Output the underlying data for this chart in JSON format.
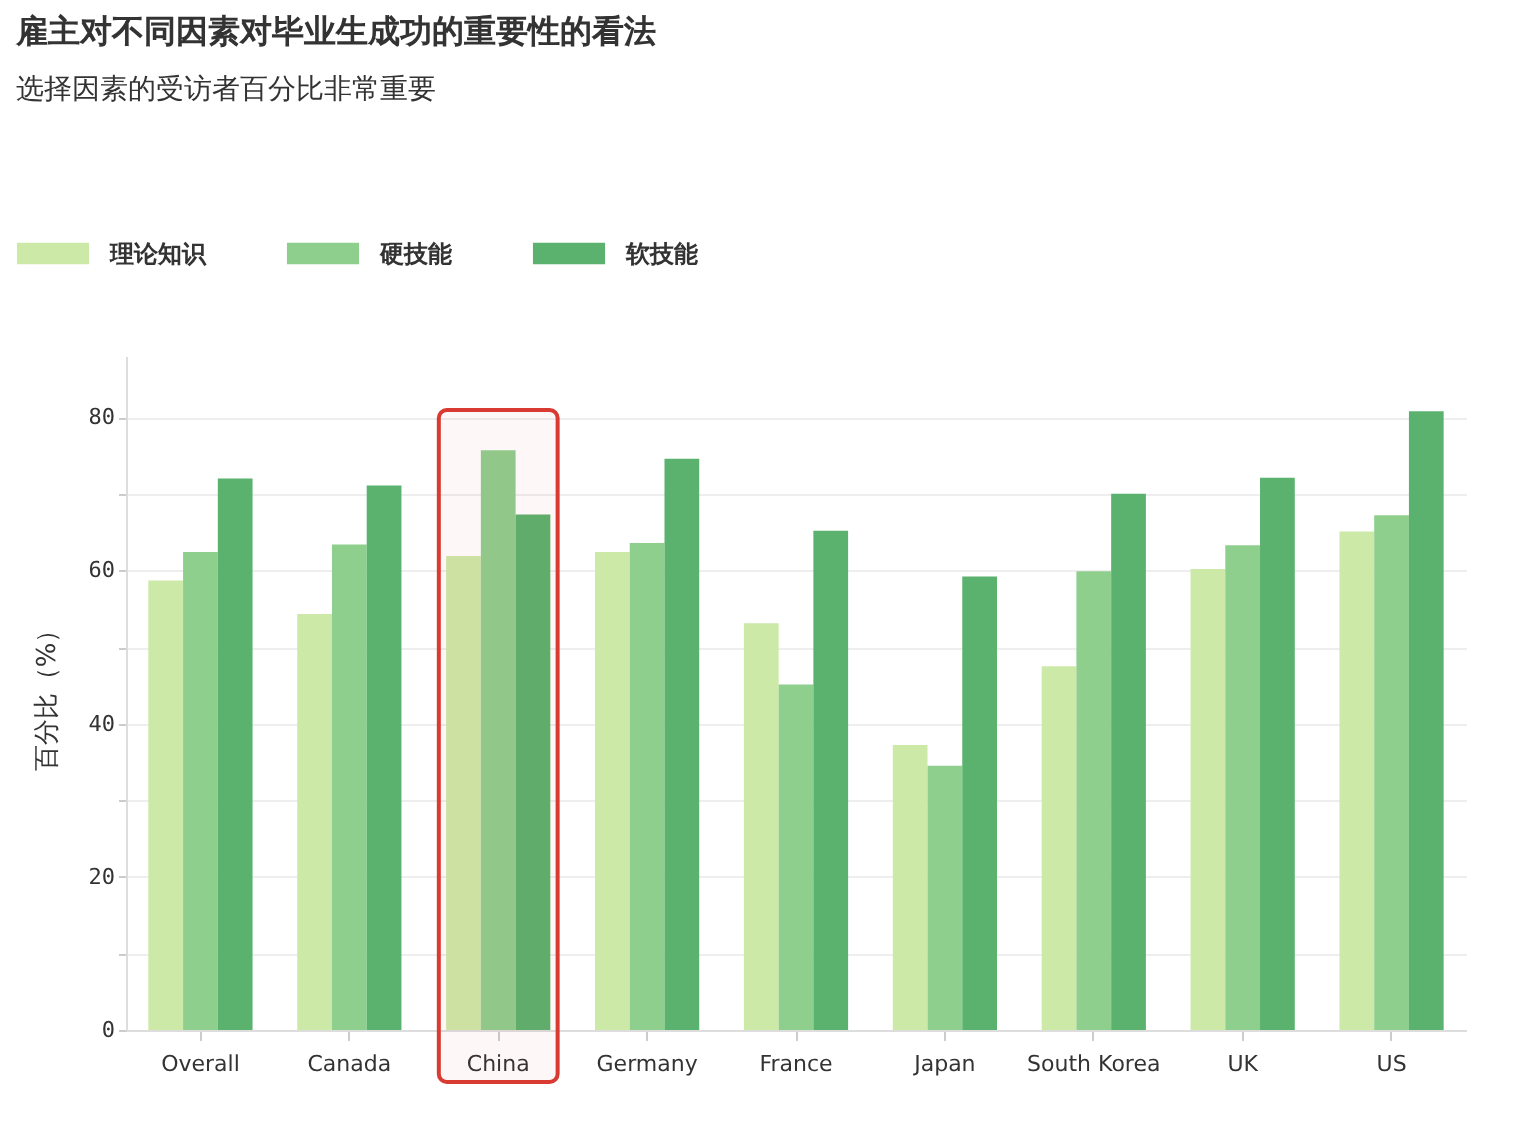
{
  "chart_data": {
    "type": "bar",
    "title": "雇主对不同因素对毕业生成功的重要性的看法",
    "subtitle": "选择因素的受访者百分比非常重要",
    "ylabel": "百分比（%）",
    "categories": [
      "Overall",
      "Canada",
      "China",
      "Germany",
      "France",
      "Japan",
      "South Korea",
      "UK",
      "US"
    ],
    "series": [
      {
        "name": "理论知识",
        "color": "#cde9a8",
        "values": [
          58.7,
          54.3,
          61.9,
          62.4,
          53.1,
          37.2,
          47.5,
          60.2,
          65.1
        ]
      },
      {
        "name": "硬技能",
        "color": "#8ecf8d",
        "values": [
          62.4,
          63.4,
          75.7,
          63.6,
          45.1,
          34.5,
          59.9,
          63.3,
          67.2
        ]
      },
      {
        "name": "软技能",
        "color": "#5bb26e",
        "values": [
          72.0,
          71.1,
          67.3,
          74.6,
          65.2,
          59.2,
          70.0,
          72.1,
          80.8
        ]
      }
    ],
    "ylim": [
      0,
      88
    ],
    "yticks": [
      0,
      {
        "value": 10,
        "label": null
      },
      20,
      {
        "value": 30,
        "label": null
      },
      40,
      {
        "value": 50,
        "label": null
      },
      60,
      {
        "value": 70,
        "label": null
      },
      80
    ],
    "grid": true,
    "legend": "top left",
    "bands": [
      {
        "axis": "x",
        "from": "China",
        "to": "China",
        "color": "#d93a32"
      }
    ]
  }
}
